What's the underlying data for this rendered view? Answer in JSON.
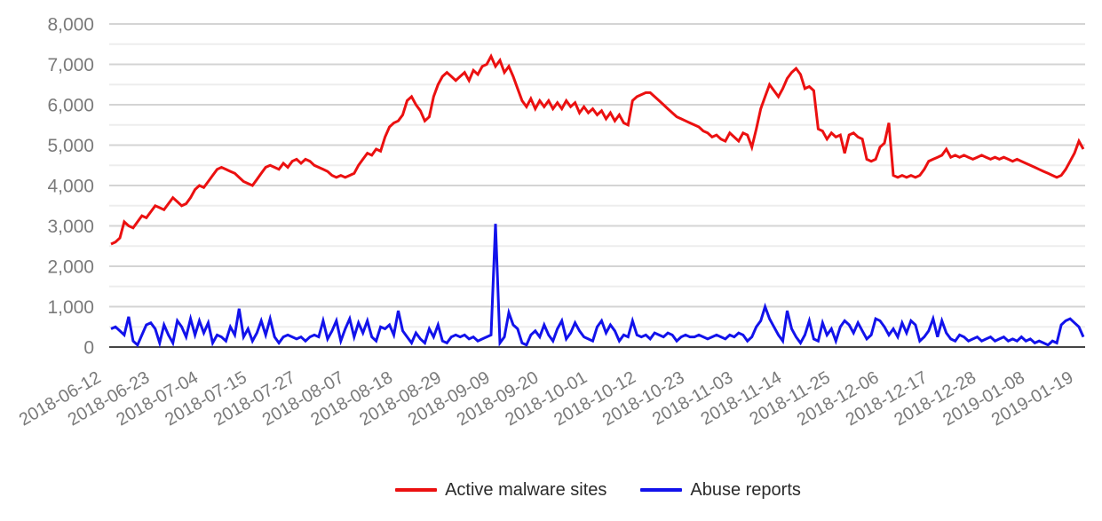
{
  "chart_data": {
    "type": "line",
    "grid": true,
    "legend_position": "bottom",
    "x_axis": {
      "tick_labels": [
        "2018-06-12",
        "2018-06-23",
        "2018-07-04",
        "2018-07-15",
        "2018-07-27",
        "2018-08-07",
        "2018-08-18",
        "2018-08-29",
        "2018-09-09",
        "2018-09-20",
        "2018-10-01",
        "2018-10-12",
        "2018-10-23",
        "2018-11-03",
        "2018-11-14",
        "2018-11-25",
        "2018-12-06",
        "2018-12-17",
        "2018-12-28",
        "2019-01-08",
        "2019-01-19"
      ],
      "tick_every": 11,
      "points_per_series": 221,
      "unit": "day"
    },
    "y_axis": {
      "min": 0,
      "max": 8000,
      "major_step": 1000,
      "minor_step": 500,
      "tick_labels": [
        "0",
        "1,000",
        "2,000",
        "3,000",
        "4,000",
        "5,000",
        "6,000",
        "7,000",
        "8,000"
      ]
    },
    "series": [
      {
        "name": "Active malware sites",
        "color": "#eb1010",
        "values": [
          2550,
          2600,
          2700,
          3100,
          3000,
          2950,
          3100,
          3250,
          3200,
          3350,
          3500,
          3450,
          3400,
          3550,
          3700,
          3600,
          3500,
          3550,
          3700,
          3900,
          4000,
          3950,
          4100,
          4250,
          4400,
          4450,
          4400,
          4350,
          4300,
          4200,
          4100,
          4050,
          4000,
          4150,
          4300,
          4450,
          4500,
          4450,
          4400,
          4550,
          4450,
          4600,
          4650,
          4550,
          4650,
          4600,
          4500,
          4450,
          4400,
          4350,
          4250,
          4200,
          4250,
          4200,
          4250,
          4300,
          4500,
          4650,
          4800,
          4750,
          4900,
          4850,
          5200,
          5450,
          5550,
          5600,
          5750,
          6100,
          6200,
          6000,
          5850,
          5600,
          5700,
          6200,
          6500,
          6700,
          6800,
          6700,
          6600,
          6700,
          6800,
          6600,
          6850,
          6750,
          6950,
          7000,
          7200,
          6950,
          7100,
          6800,
          6950,
          6700,
          6400,
          6100,
          5950,
          6150,
          5900,
          6100,
          5950,
          6100,
          5900,
          6050,
          5900,
          6100,
          5950,
          6050,
          5800,
          5950,
          5800,
          5900,
          5750,
          5850,
          5650,
          5800,
          5600,
          5750,
          5550,
          5500,
          6100,
          6200,
          6250,
          6300,
          6300,
          6200,
          6100,
          6000,
          5900,
          5800,
          5700,
          5650,
          5600,
          5550,
          5500,
          5450,
          5350,
          5300,
          5200,
          5250,
          5150,
          5100,
          5300,
          5200,
          5100,
          5300,
          5250,
          4950,
          5400,
          5900,
          6200,
          6500,
          6350,
          6200,
          6400,
          6650,
          6800,
          6900,
          6750,
          6400,
          6450,
          6350,
          5400,
          5350,
          5150,
          5300,
          5200,
          5250,
          4800,
          5250,
          5300,
          5200,
          5150,
          4650,
          4600,
          4650,
          4950,
          5050,
          5550,
          4250,
          4200,
          4250,
          4200,
          4250,
          4200,
          4250,
          4400,
          4600,
          4650,
          4700,
          4750,
          4900,
          4700,
          4750,
          4700,
          4750,
          4700,
          4650,
          4700,
          4750,
          4700,
          4650,
          4700,
          4650,
          4700,
          4650,
          4600,
          4650,
          4600,
          4550,
          4500,
          4450,
          4400,
          4350,
          4300,
          4250,
          4200,
          4250,
          4400,
          4600,
          4800,
          5100,
          4900
        ]
      },
      {
        "name": "Abuse reports",
        "color": "#1212eb",
        "values": [
          450,
          500,
          400,
          300,
          750,
          150,
          50,
          300,
          550,
          600,
          450,
          100,
          550,
          300,
          100,
          650,
          500,
          250,
          700,
          300,
          650,
          350,
          600,
          100,
          300,
          250,
          150,
          500,
          300,
          950,
          250,
          450,
          150,
          350,
          650,
          300,
          700,
          250,
          100,
          250,
          300,
          250,
          200,
          250,
          150,
          250,
          300,
          250,
          650,
          200,
          400,
          650,
          150,
          450,
          700,
          250,
          600,
          350,
          650,
          250,
          150,
          500,
          450,
          550,
          300,
          900,
          400,
          250,
          100,
          350,
          200,
          100,
          450,
          250,
          550,
          150,
          100,
          250,
          300,
          250,
          300,
          200,
          250,
          150,
          200,
          250,
          300,
          3050,
          100,
          250,
          850,
          550,
          450,
          100,
          50,
          300,
          400,
          250,
          550,
          300,
          150,
          450,
          650,
          200,
          350,
          600,
          400,
          250,
          200,
          150,
          500,
          650,
          350,
          550,
          400,
          150,
          300,
          250,
          650,
          300,
          250,
          300,
          200,
          350,
          300,
          250,
          350,
          300,
          150,
          250,
          300,
          250,
          250,
          300,
          250,
          200,
          250,
          300,
          250,
          200,
          300,
          250,
          350,
          300,
          150,
          250,
          500,
          650,
          1000,
          700,
          500,
          300,
          150,
          900,
          450,
          250,
          100,
          300,
          650,
          200,
          150,
          600,
          300,
          450,
          150,
          500,
          650,
          550,
          350,
          600,
          400,
          200,
          300,
          700,
          650,
          500,
          300,
          450,
          250,
          600,
          350,
          650,
          550,
          150,
          250,
          400,
          700,
          250,
          650,
          350,
          200,
          150,
          300,
          250,
          150,
          200,
          250,
          150,
          200,
          250,
          150,
          200,
          250,
          150,
          200,
          150,
          250,
          150,
          200,
          100,
          150,
          100,
          50,
          150,
          100,
          550,
          650,
          700,
          600,
          500,
          250
        ]
      }
    ],
    "styles": {
      "axis_label_color": "#7a7a7a",
      "grid_major_color": "#d4d4d4",
      "grid_minor_color": "#ededed",
      "baseline_color": "#444444",
      "legend_text_color": "#2b2b2b",
      "background": "#ffffff"
    }
  },
  "legend": {
    "item1": "Active malware sites",
    "item2": "Abuse reports"
  }
}
